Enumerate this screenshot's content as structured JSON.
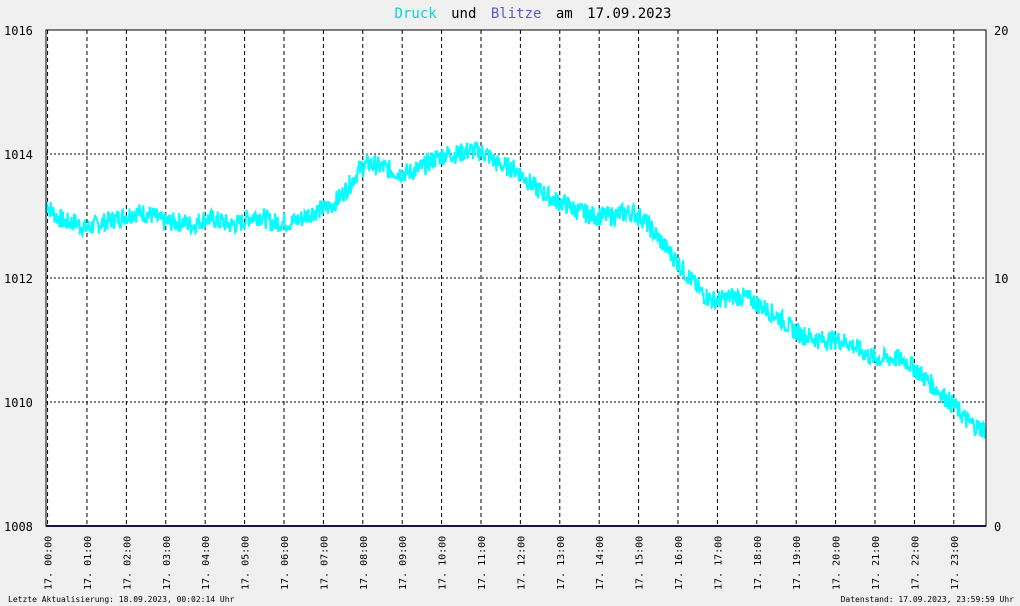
{
  "chart_data": {
    "type": "line",
    "title_parts": {
      "series1": "Druck",
      "und": "und",
      "series2": "Blitze",
      "am": "am",
      "date": "17.09.2023"
    },
    "ylim_left": [
      1008,
      1016
    ],
    "ylim_right": [
      0,
      20
    ],
    "left_ticks": [
      "1016",
      "1014",
      "1012",
      "1010",
      "1008"
    ],
    "right_ticks": [
      "20",
      "10",
      "0"
    ],
    "x_tick_labels": [
      "17. 00:00",
      "17. 01:00",
      "17. 02:00",
      "17. 03:00",
      "17. 04:00",
      "17. 05:00",
      "17. 06:00",
      "17. 07:00",
      "17. 08:00",
      "17. 09:00",
      "17. 10:00",
      "17. 11:00",
      "17. 12:00",
      "17. 13:00",
      "17. 14:00",
      "17. 15:00",
      "17. 16:00",
      "17. 17:00",
      "17. 18:00",
      "17. 19:00",
      "17. 20:00",
      "17. 21:00",
      "17. 22:00",
      "17. 23:00"
    ],
    "xlim_hours": [
      0,
      24
    ],
    "grid": true,
    "series": [
      {
        "name": "Druck",
        "color": "#00ffff",
        "x_hours": [
          0,
          0.25,
          0.5,
          0.75,
          1,
          1.25,
          1.5,
          1.75,
          2,
          2.25,
          2.5,
          2.75,
          3,
          3.25,
          3.5,
          3.75,
          4,
          4.25,
          4.5,
          4.75,
          5,
          5.25,
          5.5,
          5.75,
          6,
          6.25,
          6.5,
          6.75,
          7,
          7.25,
          7.5,
          7.75,
          8,
          8.25,
          8.5,
          8.75,
          9,
          9.25,
          9.5,
          9.75,
          10,
          10.25,
          10.5,
          10.75,
          11,
          11.25,
          11.5,
          11.75,
          12,
          12.25,
          12.5,
          12.75,
          13,
          13.25,
          13.5,
          13.75,
          14,
          14.25,
          14.5,
          14.75,
          15,
          15.25,
          15.5,
          15.75,
          16,
          16.25,
          16.5,
          16.75,
          17,
          17.25,
          17.5,
          17.75,
          18,
          18.25,
          18.5,
          18.75,
          19,
          19.25,
          19.5,
          19.75,
          20,
          20.25,
          20.5,
          20.75,
          21,
          21.25,
          21.5,
          21.75,
          22,
          22.25,
          22.5,
          22.75,
          23,
          23.25,
          23.5,
          23.75,
          24
        ],
        "values": [
          1013.2,
          1013.0,
          1012.9,
          1012.9,
          1012.8,
          1012.85,
          1012.9,
          1012.95,
          1013.0,
          1013.05,
          1013.05,
          1013.0,
          1012.9,
          1012.9,
          1012.9,
          1012.85,
          1012.95,
          1012.95,
          1012.9,
          1012.85,
          1012.9,
          1013.0,
          1013.0,
          1012.9,
          1012.9,
          1012.9,
          1012.95,
          1013.05,
          1013.1,
          1013.15,
          1013.3,
          1013.5,
          1013.75,
          1013.85,
          1013.8,
          1013.75,
          1013.7,
          1013.7,
          1013.75,
          1013.85,
          1013.95,
          1014.0,
          1014.0,
          1014.05,
          1014.05,
          1014.0,
          1013.85,
          1013.8,
          1013.75,
          1013.6,
          1013.45,
          1013.35,
          1013.25,
          1013.2,
          1013.1,
          1013.05,
          1013.0,
          1013.0,
          1013.0,
          1013.05,
          1013.05,
          1012.95,
          1012.75,
          1012.55,
          1012.35,
          1012.15,
          1011.95,
          1011.75,
          1011.65,
          1011.65,
          1011.7,
          1011.7,
          1011.65,
          1011.55,
          1011.45,
          1011.35,
          1011.2,
          1011.1,
          1011.05,
          1011.0,
          1011.0,
          1011.0,
          1010.95,
          1010.85,
          1010.75,
          1010.7,
          1010.7,
          1010.7,
          1010.65,
          1010.5,
          1010.35,
          1010.2,
          1010.05,
          1009.9,
          1009.7,
          1009.6,
          1009.55
        ],
        "axis": "left"
      },
      {
        "name": "Blitze",
        "color": "#2a2a8c",
        "x_hours": [
          0,
          24
        ],
        "values": [
          0,
          0
        ],
        "axis": "right"
      }
    ]
  },
  "footer": {
    "left": "Letzte Aktualisierung: 18.09.2023, 00:02:14 Uhr",
    "right": "Datenstand: 17.09.2023, 23:59:59 Uhr"
  },
  "colors": {
    "background": "#f0f0f0",
    "plot_background": "#ffffff",
    "grid": "#000000",
    "title_text": "#000000"
  }
}
